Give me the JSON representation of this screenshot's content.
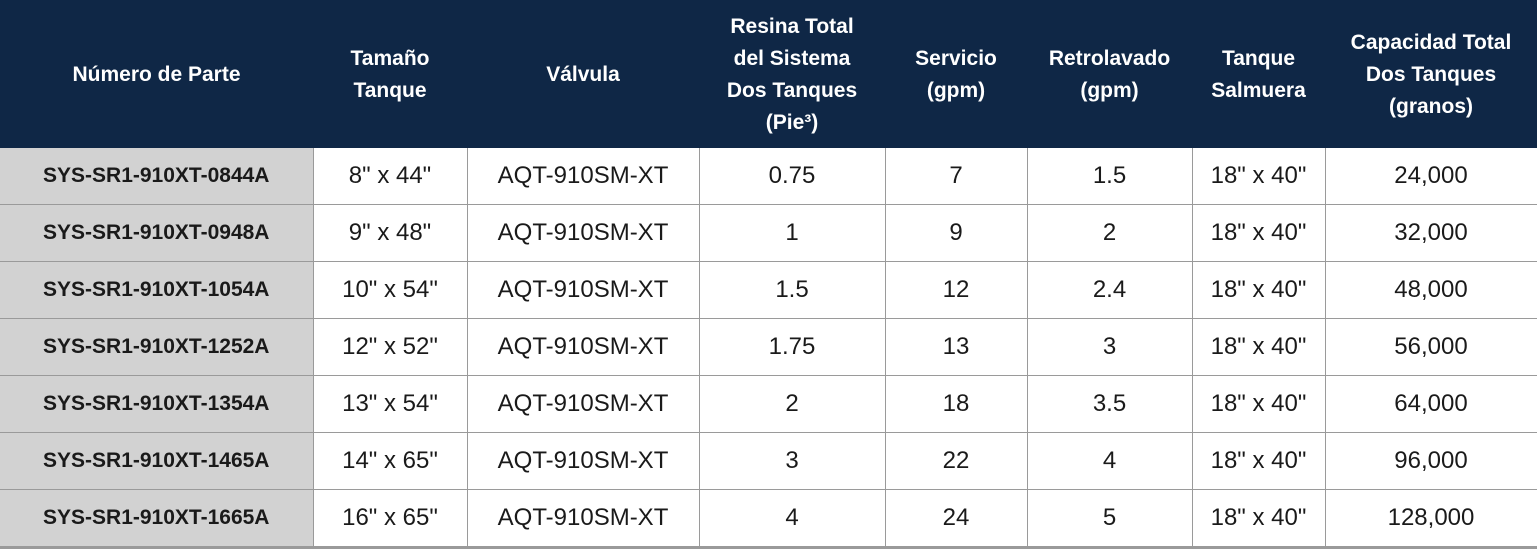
{
  "table": {
    "headers": [
      "Número de Parte",
      "Tamaño\nTanque",
      "Válvula",
      "Resina Total\ndel Sistema\nDos Tanques\n(Pie³)",
      "Servicio\n(gpm)",
      "Retrolavado\n(gpm)",
      "Tanque\nSalmuera",
      "Capacidad Total\nDos Tanques\n(granos)"
    ],
    "rows": [
      [
        "SYS-SR1-910XT-0844A",
        "8\" x 44\"",
        "AQT-910SM-XT",
        "0.75",
        "7",
        "1.5",
        "18\" x 40\"",
        "24,000"
      ],
      [
        "SYS-SR1-910XT-0948A",
        "9\" x 48\"",
        "AQT-910SM-XT",
        "1",
        "9",
        "2",
        "18\" x 40\"",
        "32,000"
      ],
      [
        "SYS-SR1-910XT-1054A",
        "10\" x 54\"",
        "AQT-910SM-XT",
        "1.5",
        "12",
        "2.4",
        "18\" x 40\"",
        "48,000"
      ],
      [
        "SYS-SR1-910XT-1252A",
        "12\" x 52\"",
        "AQT-910SM-XT",
        "1.75",
        "13",
        "3",
        "18\" x 40\"",
        "56,000"
      ],
      [
        "SYS-SR1-910XT-1354A",
        "13\" x 54\"",
        "AQT-910SM-XT",
        "2",
        "18",
        "3.5",
        "18\" x 40\"",
        "64,000"
      ],
      [
        "SYS-SR1-910XT-1465A",
        "14\" x 65\"",
        "AQT-910SM-XT",
        "3",
        "22",
        "4",
        "18\" x 40\"",
        "96,000"
      ],
      [
        "SYS-SR1-910XT-1665A",
        "16\" x 65\"",
        "AQT-910SM-XT",
        "4",
        "24",
        "5",
        "18\" x 40\"",
        "128,000"
      ]
    ]
  }
}
